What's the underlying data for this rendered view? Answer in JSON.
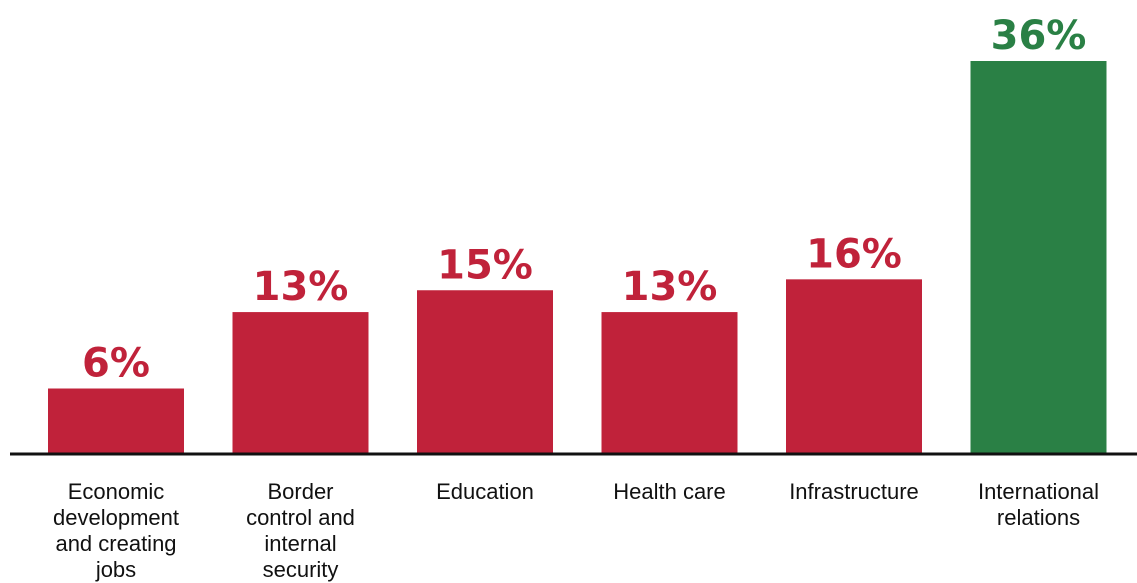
{
  "chart_data": {
    "type": "bar",
    "title": "",
    "xlabel": "",
    "ylabel": "",
    "ylim": [
      0,
      36
    ],
    "grid": false,
    "legend": "none",
    "categories": [
      "Economic development and creating jobs",
      "Border control and internal security",
      "Education",
      "Health care",
      "Infrastructure",
      "International relations"
    ],
    "category_lines": [
      [
        "Economic",
        "development",
        "and creating",
        "jobs"
      ],
      [
        "Border",
        "control and",
        "internal",
        "security"
      ],
      [
        "Education"
      ],
      [
        "Health care"
      ],
      [
        "Infrastructure"
      ],
      [
        "International",
        "relations"
      ]
    ],
    "values": [
      6,
      13,
      15,
      13,
      16,
      36
    ],
    "value_labels": [
      "6%",
      "13%",
      "15%",
      "13%",
      "16%",
      "36%"
    ],
    "highlight_index": 5
  },
  "colors": {
    "bar": "#C0223A",
    "highlight_bar": "#2A8045",
    "axis": "#111111",
    "label_text": "#111111"
  }
}
